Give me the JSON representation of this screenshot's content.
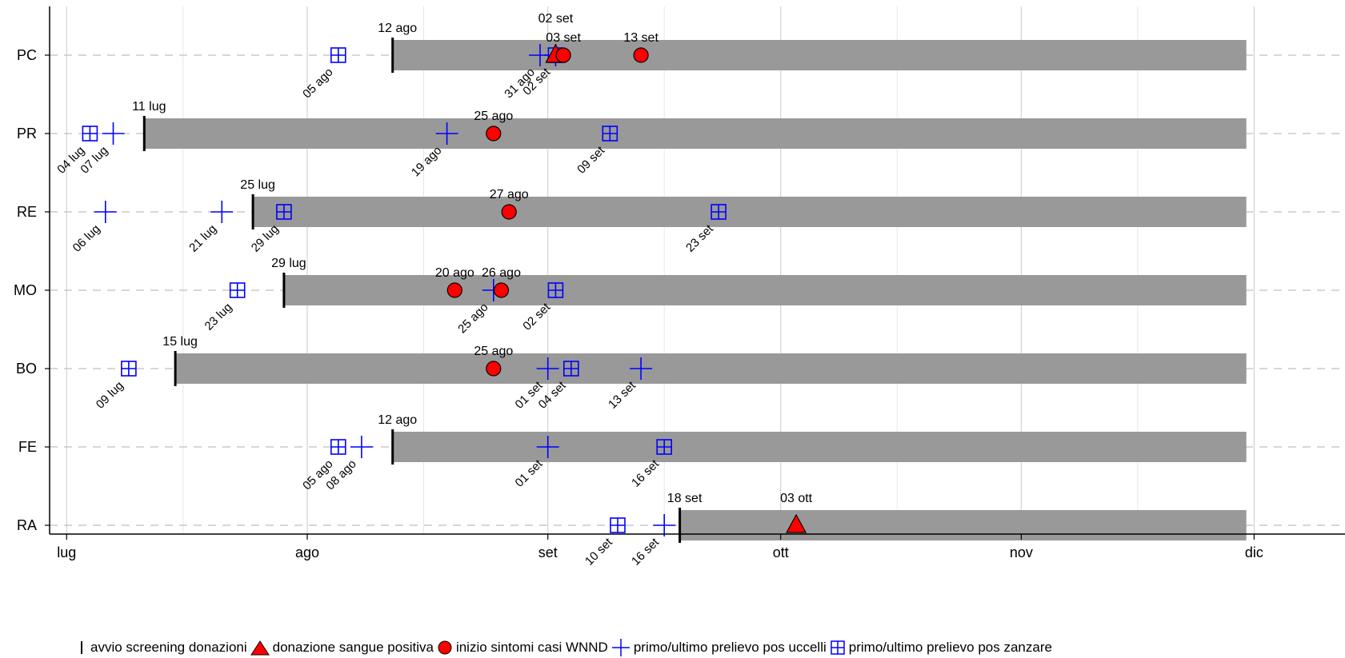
{
  "chart_data": {
    "type": "scatter",
    "title": "",
    "x_axis": {
      "ticks": [
        "lug",
        "ago",
        "set",
        "ott",
        "nov",
        "dic"
      ],
      "range": [
        "2024-06-27",
        "2024-12-07"
      ]
    },
    "rows": [
      "PC",
      "PR",
      "RE",
      "MO",
      "BO",
      "FE",
      "RA"
    ],
    "screening_start": [
      {
        "row": "PC",
        "date": "2024-08-12",
        "label": "12 ago"
      },
      {
        "row": "PR",
        "date": "2024-07-11",
        "label": "11 lug"
      },
      {
        "row": "RE",
        "date": "2024-07-25",
        "label": "25 lug"
      },
      {
        "row": "MO",
        "date": "2024-07-29",
        "label": "29 lug"
      },
      {
        "row": "BO",
        "date": "2024-07-15",
        "label": "15 lug"
      },
      {
        "row": "FE",
        "date": "2024-08-12",
        "label": "12 ago"
      },
      {
        "row": "RA",
        "date": "2024-09-18",
        "label": "18 set"
      }
    ],
    "bar_end": "2024-11-30",
    "positive_blood_donation": [
      {
        "row": "PC",
        "date": "2024-09-02",
        "label": "02 set"
      },
      {
        "row": "RA",
        "date": "2024-10-03",
        "label": "03 ott"
      }
    ],
    "wnnd_symptom_onset": [
      {
        "row": "PC",
        "date": "2024-09-03",
        "label": "03 set"
      },
      {
        "row": "PC",
        "date": "2024-09-13",
        "label": "13 set"
      },
      {
        "row": "PR",
        "date": "2024-08-25",
        "label": "25 ago"
      },
      {
        "row": "RE",
        "date": "2024-08-27",
        "label": "27 ago"
      },
      {
        "row": "MO",
        "date": "2024-08-20",
        "label": "20 ago"
      },
      {
        "row": "MO",
        "date": "2024-08-26",
        "label": "26 ago"
      },
      {
        "row": "BO",
        "date": "2024-08-25",
        "label": "25 ago"
      }
    ],
    "birds_first_last_positive": [
      {
        "row": "PC",
        "date": "2024-08-31",
        "label": "31 ago"
      },
      {
        "row": "PC",
        "date": "2024-09-02",
        "label": "02 set"
      },
      {
        "row": "PR",
        "date": "2024-07-07",
        "label": "07 lug"
      },
      {
        "row": "PR",
        "date": "2024-08-19",
        "label": "19 ago"
      },
      {
        "row": "RE",
        "date": "2024-07-06",
        "label": "06 lug"
      },
      {
        "row": "RE",
        "date": "2024-07-21",
        "label": "21 lug"
      },
      {
        "row": "MO",
        "date": "2024-08-25",
        "label": "25 ago"
      },
      {
        "row": "BO",
        "date": "2024-09-01",
        "label": "01 set"
      },
      {
        "row": "BO",
        "date": "2024-09-13",
        "label": "13 set"
      },
      {
        "row": "FE",
        "date": "2024-08-08",
        "label": "08 ago"
      },
      {
        "row": "FE",
        "date": "2024-09-01",
        "label": "01 set"
      },
      {
        "row": "RA",
        "date": "2024-09-16",
        "label": "16 set"
      }
    ],
    "mosquitoes_first_last_positive": [
      {
        "row": "PC",
        "date": "2024-08-05",
        "label": "05 ago"
      },
      {
        "row": "PC",
        "date": "2024-09-02",
        "label": ""
      },
      {
        "row": "PR",
        "date": "2024-07-04",
        "label": "04 lug"
      },
      {
        "row": "PR",
        "date": "2024-09-09",
        "label": "09 set"
      },
      {
        "row": "RE",
        "date": "2024-07-29",
        "label": "29 lug"
      },
      {
        "row": "RE",
        "date": "2024-09-23",
        "label": "23 set"
      },
      {
        "row": "MO",
        "date": "2024-07-23",
        "label": "23 lug"
      },
      {
        "row": "MO",
        "date": "2024-09-02",
        "label": "02 set"
      },
      {
        "row": "BO",
        "date": "2024-07-09",
        "label": "09 lug"
      },
      {
        "row": "BO",
        "date": "2024-09-04",
        "label": "04 set"
      },
      {
        "row": "FE",
        "date": "2024-08-05",
        "label": "05 ago"
      },
      {
        "row": "FE",
        "date": "2024-09-16",
        "label": "16 set"
      },
      {
        "row": "RA",
        "date": "2024-09-10",
        "label": "10 set"
      }
    ],
    "legend": [
      "avvio screening donazioni",
      "donazione sangue positiva",
      "inizio sintomi casi WNND",
      "primo/ultimo prelievo pos uccelli",
      "primo/ultimo prelievo pos zanzare"
    ],
    "colors": {
      "bar": "#999999",
      "screening_marker": "#000000",
      "triangle": "#ff0000",
      "circle": "#ff0000",
      "birds": "#0000ff",
      "mosquitoes": "#0000ff",
      "grid": "#d3d3d3",
      "row_dash": "#bfbfbf"
    }
  }
}
